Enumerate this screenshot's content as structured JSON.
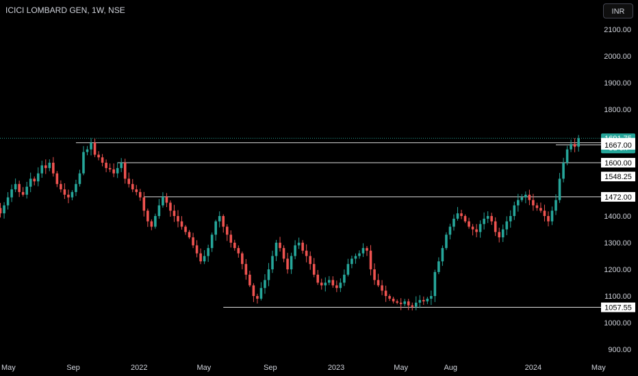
{
  "header": {
    "title": "ICICI LOMBARD GEN, 1W, NSE",
    "currency_button": "INR"
  },
  "colors": {
    "background": "#000000",
    "bullish": "#26a69a",
    "bearish": "#ef5350",
    "level_line": "#e0e0e0",
    "text": "#d1d4dc"
  },
  "chart_data": {
    "type": "candlestick",
    "title": "ICICI LOMBARD GEN, 1W, NSE",
    "currency": "INR",
    "ylim": [
      870,
      2170
    ],
    "y_ticks": [
      "2100.00",
      "2000.00",
      "1900.00",
      "1800.00",
      "1400.00",
      "1300.00",
      "1200.00",
      "1100.00",
      "1000.00",
      "900.00"
    ],
    "x_ticks": [
      "May",
      "Sep",
      "2022",
      "May",
      "Sep",
      "2023",
      "May",
      "Aug",
      "2024",
      "May"
    ],
    "x_tick_dates": [
      "2021-05-01",
      "2021-09-01",
      "2022-01-01",
      "2022-05-01",
      "2022-09-01",
      "2023-01-01",
      "2023-05-01",
      "2023-08-01",
      "2024-01-01",
      "2024-05-01"
    ],
    "last_price": {
      "value": "1691.75",
      "countdown": "3d 6h"
    },
    "levels": [
      {
        "label": "1675.00",
        "value": 1675,
        "from": "2021-09-06"
      },
      {
        "label": "1667.00",
        "value": 1667,
        "from": "2024-02-12"
      },
      {
        "label": "1600.00",
        "value": 1600,
        "from": "2021-11-22"
      },
      {
        "label": "1548.25",
        "value": 1548.25
      },
      {
        "label": "1472.00",
        "value": 1472,
        "from": "2022-01-10"
      },
      {
        "label": "1057.55",
        "value": 1057.55,
        "from": "2022-06-06"
      }
    ],
    "weekly_closes": [
      {
        "start": "2021-04-05",
        "closes": [
          1450,
          1430,
          1410,
          1440,
          1470,
          1500,
          1520,
          1490,
          1480,
          1510,
          1540,
          1530,
          1560,
          1590,
          1580,
          1600,
          1560,
          1520,
          1500,
          1480,
          1470,
          1490,
          1520,
          1560,
          1640,
          1650,
          1675,
          1630,
          1620,
          1600,
          1580,
          1575,
          1560,
          1580,
          1600,
          1540,
          1520,
          1500,
          1490,
          1470,
          1420,
          1380,
          1360,
          1400,
          1440,
          1472,
          1450,
          1420,
          1400,
          1380,
          1360,
          1340,
          1320,
          1290,
          1260,
          1230,
          1250,
          1280,
          1330,
          1380,
          1400,
          1360,
          1330,
          1300,
          1280,
          1260,
          1220,
          1180,
          1140,
          1100,
          1090,
          1130,
          1160,
          1200,
          1250,
          1300,
          1280,
          1240,
          1200,
          1250,
          1290,
          1300,
          1270,
          1250,
          1220,
          1180,
          1150,
          1140,
          1150,
          1160,
          1140,
          1130,
          1150,
          1180,
          1220,
          1240,
          1250,
          1260,
          1280,
          1270,
          1200,
          1160,
          1140,
          1120,
          1100,
          1090,
          1080,
          1075,
          1070,
          1080,
          1065,
          1060,
          1075,
          1085,
          1080,
          1090,
          1100,
          1190,
          1230,
          1280,
          1330,
          1360,
          1390,
          1410,
          1400,
          1380,
          1360,
          1350,
          1340,
          1370,
          1390,
          1400,
          1380,
          1340,
          1320,
          1350,
          1380,
          1400,
          1440,
          1460,
          1470,
          1480,
          1460,
          1440,
          1430,
          1420,
          1400,
          1380,
          1420,
          1460,
          1540,
          1600,
          1650,
          1670,
          1660,
          1691.75
        ]
      }
    ]
  }
}
